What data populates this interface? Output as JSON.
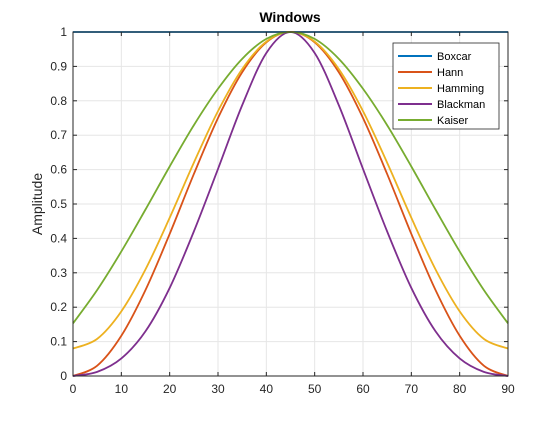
{
  "chart_data": {
    "type": "line",
    "title": "Windows",
    "xlabel": "",
    "ylabel": "Amplitude",
    "xlim": [
      0,
      90
    ],
    "ylim": [
      0,
      1
    ],
    "xticks": [
      0,
      10,
      20,
      30,
      40,
      50,
      60,
      70,
      80,
      90
    ],
    "yticks": [
      0,
      0.1,
      0.2,
      0.3,
      0.4,
      0.5,
      0.6,
      0.7,
      0.8,
      0.9,
      1
    ],
    "grid": true,
    "legend_position": "top-right",
    "x": [
      0,
      5,
      10,
      15,
      20,
      25,
      30,
      35,
      40,
      45,
      50,
      55,
      60,
      65,
      70,
      75,
      80,
      85,
      90
    ],
    "series": [
      {
        "name": "Boxcar",
        "color": "#0072BD",
        "values": [
          1,
          1,
          1,
          1,
          1,
          1,
          1,
          1,
          1,
          1,
          1,
          1,
          1,
          1,
          1,
          1,
          1,
          1,
          1
        ]
      },
      {
        "name": "Hann",
        "color": "#D95319",
        "values": [
          0,
          0.03,
          0.117,
          0.25,
          0.413,
          0.587,
          0.75,
          0.883,
          0.97,
          1.0,
          0.97,
          0.883,
          0.75,
          0.587,
          0.413,
          0.25,
          0.117,
          0.03,
          0
        ]
      },
      {
        "name": "Hamming",
        "color": "#EDB120",
        "values": [
          0.08,
          0.108,
          0.188,
          0.31,
          0.46,
          0.62,
          0.77,
          0.892,
          0.972,
          1.0,
          0.972,
          0.892,
          0.77,
          0.62,
          0.46,
          0.31,
          0.188,
          0.108,
          0.08
        ]
      },
      {
        "name": "Blackman",
        "color": "#7E2F8E",
        "values": [
          0,
          0.012,
          0.051,
          0.13,
          0.256,
          0.42,
          0.602,
          0.787,
          0.939,
          1.0,
          0.939,
          0.787,
          0.602,
          0.42,
          0.256,
          0.13,
          0.051,
          0.012,
          0
        ]
      },
      {
        "name": "Kaiser",
        "color": "#77AC30",
        "values": [
          0.153,
          0.25,
          0.362,
          0.484,
          0.609,
          0.729,
          0.835,
          0.922,
          0.98,
          1.0,
          0.98,
          0.922,
          0.835,
          0.729,
          0.609,
          0.484,
          0.362,
          0.25,
          0.153
        ]
      }
    ]
  }
}
